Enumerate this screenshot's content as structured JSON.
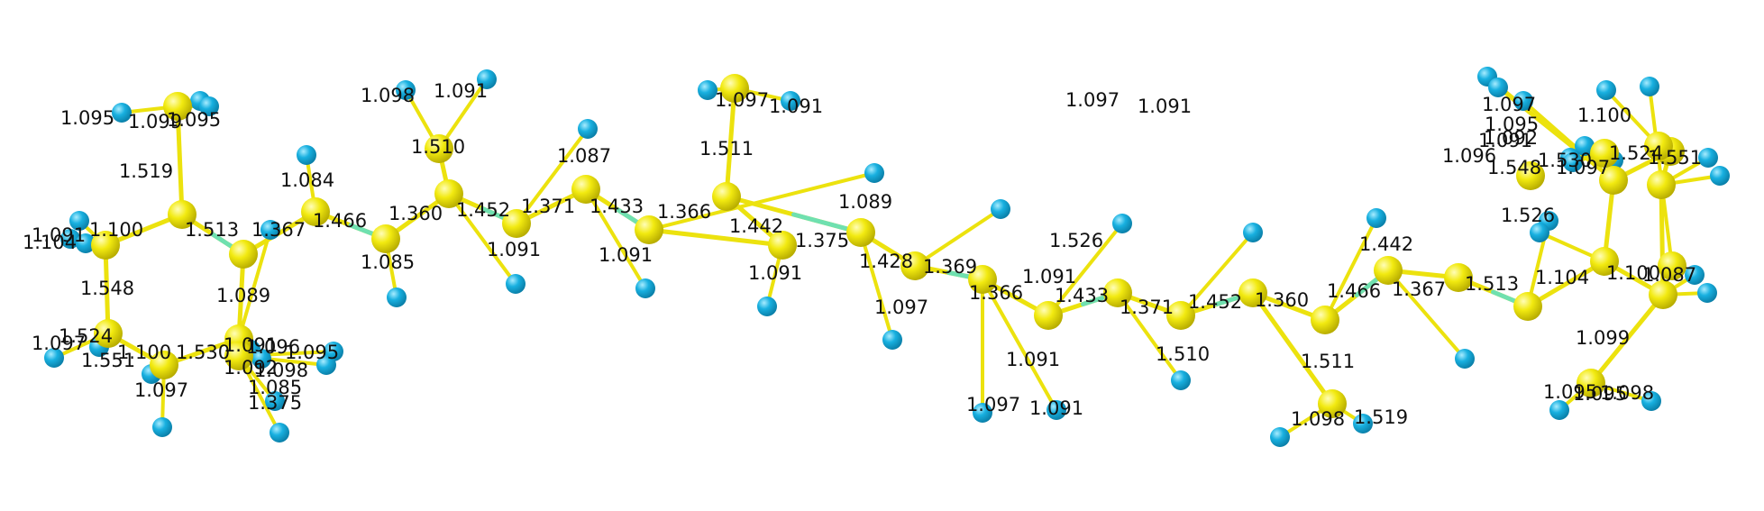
{
  "colors": {
    "background": "#ffffff",
    "carbon": "#f2ea10",
    "carbon_highlight": "#fffdb8",
    "hydrogen": "#18b0e0",
    "hydrogen_highlight": "#a8ecff",
    "single_bond": "#ece20e",
    "double_bond_mix": "#6fe0b0",
    "label": "#111111"
  },
  "molecule": {
    "carbon_count": 40,
    "hydrogen_count": 56,
    "bond_length_labels": [
      "1.098",
      "1.091",
      "1.097",
      "1.091",
      "1.097",
      "1.091",
      "1.095",
      "1.099",
      "1.095",
      "1.510",
      "1.511",
      "1.519",
      "1.087",
      "1.089",
      "1.084",
      "1.091",
      "1.100",
      "1.513",
      "1.367",
      "1.466",
      "1.360",
      "1.452",
      "1.371",
      "1.433",
      "1.366",
      "1.442",
      "1.375",
      "1.428",
      "1.369",
      "1.104",
      "1.085",
      "1.091",
      "1.091",
      "1.091",
      "1.091",
      "1.526",
      "1.548",
      "1.089",
      "1.097",
      "1.097",
      "1.524",
      "1.100",
      "1.551",
      "1.530",
      "1.096",
      "1.091",
      "1.095",
      "1.092",
      "1.098",
      "1.097",
      "1.085",
      "1.375",
      "1.442",
      "1.366",
      "1.433",
      "1.371",
      "1.452",
      "1.360",
      "1.466",
      "1.367",
      "1.513",
      "1.104",
      "1.100",
      "1.087",
      "1.510",
      "1.511",
      "1.091",
      "1.097",
      "1.091",
      "1.098",
      "1.519",
      "1.099",
      "1.095",
      "1.095",
      "1.098",
      "1.100",
      "1.524",
      "1.551",
      "1.530",
      "1.097",
      "1.097",
      "1.095",
      "1.092",
      "1.091",
      "1.096",
      "1.548",
      "1.526"
    ]
  }
}
